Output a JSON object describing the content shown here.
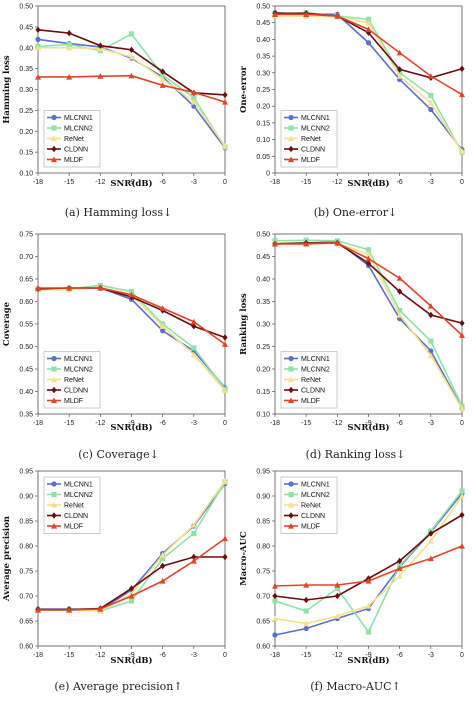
{
  "series_styles": [
    {
      "name": "MLCNN1",
      "color": "#5b6fce",
      "marker": "circle"
    },
    {
      "name": "MLCNN2",
      "color": "#8fe3a8",
      "marker": "square"
    },
    {
      "name": "ReNet",
      "color": "#f7e08a",
      "marker": "triangle"
    },
    {
      "name": "CLDNN",
      "color": "#6b0d0d",
      "marker": "diamond"
    },
    {
      "name": "MLDF",
      "color": "#e0452a",
      "marker": "triangle"
    }
  ],
  "chart_data": [
    {
      "id": "a",
      "type": "line",
      "caption": "(a)  Hamming loss↓",
      "xlabel": "SNR(dB)",
      "ylabel": "Hamming loss",
      "x": [
        -18,
        -15,
        -12,
        -9,
        -6,
        -3,
        0
      ],
      "ylim": [
        0.1,
        0.5
      ],
      "yticks": [
        "0.10",
        "0.15",
        "0.20",
        "0.25",
        "0.30",
        "0.35",
        "0.40",
        "0.45",
        "0.50"
      ],
      "legend_position": "bottom-left",
      "series": [
        {
          "name": "MLCNN1",
          "values": [
            0.42,
            0.41,
            0.402,
            0.375,
            0.33,
            0.26,
            0.16
          ]
        },
        {
          "name": "MLCNN2",
          "values": [
            0.403,
            0.408,
            0.393,
            0.433,
            0.335,
            0.28,
            0.162
          ]
        },
        {
          "name": "ReNet",
          "values": [
            0.4,
            0.4,
            0.398,
            0.378,
            0.325,
            0.27,
            0.165
          ]
        },
        {
          "name": "CLDNN",
          "values": [
            0.443,
            0.435,
            0.405,
            0.395,
            0.343,
            0.292,
            0.287
          ]
        },
        {
          "name": "MLDF",
          "values": [
            0.33,
            0.33,
            0.332,
            0.333,
            0.31,
            0.293,
            0.27
          ]
        }
      ]
    },
    {
      "id": "b",
      "type": "line",
      "caption": "(b)  One-error↓",
      "xlabel": "SNR(dB)",
      "ylabel": "One-error",
      "x": [
        -18,
        -15,
        -12,
        -9,
        -6,
        -3,
        0
      ],
      "ylim": [
        0,
        0.5
      ],
      "yticks": [
        "0",
        "0.05",
        "0.10",
        "0.15",
        "0.20",
        "0.25",
        "0.30",
        "0.35",
        "0.40",
        "0.45",
        "0.50"
      ],
      "legend_position": "bottom-left",
      "series": [
        {
          "name": "MLCNN1",
          "values": [
            0.48,
            0.475,
            0.475,
            0.39,
            0.28,
            0.19,
            0.07
          ]
        },
        {
          "name": "MLCNN2",
          "values": [
            0.475,
            0.48,
            0.47,
            0.46,
            0.3,
            0.232,
            0.062
          ]
        },
        {
          "name": "ReNet",
          "values": [
            0.47,
            0.47,
            0.468,
            0.45,
            0.29,
            0.21,
            0.065
          ]
        },
        {
          "name": "CLDNN",
          "values": [
            0.478,
            0.478,
            0.47,
            0.42,
            0.31,
            0.285,
            0.312
          ]
        },
        {
          "name": "MLDF",
          "values": [
            0.475,
            0.475,
            0.47,
            0.43,
            0.36,
            0.29,
            0.235
          ]
        }
      ]
    },
    {
      "id": "c",
      "type": "line",
      "caption": "(c)  Coverage↓",
      "xlabel": "SNR(dB)",
      "ylabel": "Coverage",
      "x": [
        -18,
        -15,
        -12,
        -9,
        -6,
        -3,
        0
      ],
      "ylim": [
        0.35,
        0.75
      ],
      "yticks": [
        "0.35",
        "0.40",
        "0.45",
        "0.50",
        "0.55",
        "0.60",
        "0.65",
        "0.70",
        "0.75"
      ],
      "legend_position": "bottom-left",
      "series": [
        {
          "name": "MLCNN1",
          "values": [
            0.628,
            0.628,
            0.63,
            0.605,
            0.535,
            0.49,
            0.408
          ]
        },
        {
          "name": "MLCNN2",
          "values": [
            0.628,
            0.628,
            0.636,
            0.622,
            0.55,
            0.497,
            0.405
          ]
        },
        {
          "name": "ReNet",
          "values": [
            0.626,
            0.626,
            0.632,
            0.615,
            0.545,
            0.482,
            0.402
          ]
        },
        {
          "name": "CLDNN",
          "values": [
            0.628,
            0.63,
            0.63,
            0.61,
            0.58,
            0.545,
            0.52
          ]
        },
        {
          "name": "MLDF",
          "values": [
            0.63,
            0.63,
            0.63,
            0.615,
            0.585,
            0.555,
            0.505
          ]
        }
      ]
    },
    {
      "id": "d",
      "type": "line",
      "caption": "(d)  Ranking loss↓",
      "xlabel": "SNR(dB)",
      "ylabel": "Ranking loss",
      "x": [
        -18,
        -15,
        -12,
        -9,
        -6,
        -3,
        0
      ],
      "ylim": [
        0.1,
        0.5
      ],
      "yticks": [
        "0.10",
        "0.15",
        "0.20",
        "0.25",
        "0.30",
        "0.35",
        "0.40",
        "0.45",
        "0.50"
      ],
      "legend_position": "bottom-left",
      "series": [
        {
          "name": "MLCNN1",
          "values": [
            0.48,
            0.48,
            0.483,
            0.43,
            0.312,
            0.24,
            0.113
          ]
        },
        {
          "name": "MLCNN2",
          "values": [
            0.485,
            0.486,
            0.485,
            0.465,
            0.33,
            0.262,
            0.118
          ]
        },
        {
          "name": "ReNet",
          "values": [
            0.48,
            0.48,
            0.48,
            0.455,
            0.32,
            0.23,
            0.112
          ]
        },
        {
          "name": "CLDNN",
          "values": [
            0.478,
            0.48,
            0.48,
            0.435,
            0.372,
            0.32,
            0.302
          ]
        },
        {
          "name": "MLDF",
          "values": [
            0.478,
            0.478,
            0.48,
            0.445,
            0.402,
            0.34,
            0.275
          ]
        }
      ]
    },
    {
      "id": "e",
      "type": "line",
      "caption": "(e)  Average precision↑",
      "xlabel": "SNR(dB)",
      "ylabel": "Average precision",
      "x": [
        -18,
        -15,
        -12,
        -9,
        -6,
        -3,
        0
      ],
      "ylim": [
        0.6,
        0.95
      ],
      "yticks": [
        "0.60",
        "0.65",
        "0.70",
        "0.75",
        "0.80",
        "0.85",
        "0.90",
        "0.95"
      ],
      "legend_position": "top-left",
      "series": [
        {
          "name": "MLCNN1",
          "values": [
            0.674,
            0.674,
            0.672,
            0.712,
            0.785,
            0.84,
            0.925
          ]
        },
        {
          "name": "MLCNN2",
          "values": [
            0.672,
            0.672,
            0.67,
            0.69,
            0.775,
            0.825,
            0.928
          ]
        },
        {
          "name": "ReNet",
          "values": [
            0.673,
            0.673,
            0.67,
            0.705,
            0.782,
            0.842,
            0.93
          ]
        },
        {
          "name": "CLDNN",
          "values": [
            0.673,
            0.673,
            0.675,
            0.715,
            0.76,
            0.778,
            0.778
          ]
        },
        {
          "name": "MLDF",
          "values": [
            0.672,
            0.672,
            0.674,
            0.7,
            0.73,
            0.77,
            0.815
          ]
        }
      ]
    },
    {
      "id": "f",
      "type": "line",
      "caption": "(f)  Macro-AUC↑",
      "xlabel": "SNR(dB)",
      "ylabel": "Macro-AUC",
      "x": [
        -18,
        -15,
        -12,
        -9,
        -6,
        -3,
        0
      ],
      "ylim": [
        0.6,
        0.95
      ],
      "yticks": [
        "0.60",
        "0.65",
        "0.70",
        "0.75",
        "0.80",
        "0.85",
        "0.90",
        "0.95"
      ],
      "legend_position": "top-left",
      "series": [
        {
          "name": "MLCNN1",
          "values": [
            0.622,
            0.635,
            0.655,
            0.675,
            0.758,
            0.828,
            0.905
          ]
        },
        {
          "name": "MLCNN2",
          "values": [
            0.69,
            0.67,
            0.715,
            0.628,
            0.76,
            0.83,
            0.91
          ]
        },
        {
          "name": "ReNet",
          "values": [
            0.655,
            0.645,
            0.66,
            0.68,
            0.74,
            0.81,
            0.9
          ]
        },
        {
          "name": "CLDNN",
          "values": [
            0.7,
            0.692,
            0.7,
            0.735,
            0.77,
            0.825,
            0.862
          ]
        },
        {
          "name": "MLDF",
          "values": [
            0.72,
            0.722,
            0.722,
            0.73,
            0.755,
            0.775,
            0.8
          ]
        }
      ]
    }
  ]
}
